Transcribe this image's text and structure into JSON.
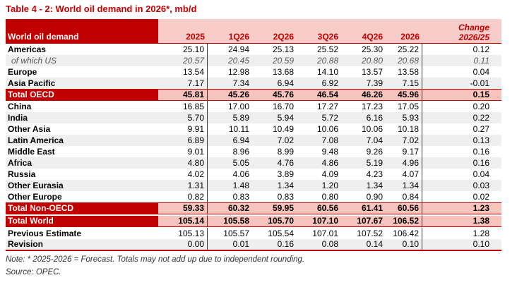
{
  "title": "Table 4 - 2: World oil demand in 2026*, mb/d",
  "colors": {
    "dark_red": "#C00000",
    "pink_header": "#F8CCC8",
    "pink_total": "#F7C4BD",
    "stripe_gray": "#EFEFEF",
    "sub_gray": "#595959",
    "note_gray": "#333333"
  },
  "table": {
    "label_header": "World oil demand",
    "columns": [
      "2025",
      "1Q26",
      "2Q26",
      "3Q26",
      "4Q26",
      "2026"
    ],
    "change_header": {
      "line1": "Change",
      "line2": "2026/25"
    },
    "rows": [
      {
        "label": "Americas",
        "type": "normal",
        "values": [
          "25.10",
          "24.94",
          "25.13",
          "25.52",
          "25.30",
          "25.22",
          "0.12"
        ]
      },
      {
        "label": "of which US",
        "type": "sub",
        "values": [
          "20.57",
          "20.45",
          "20.59",
          "20.88",
          "20.80",
          "20.68",
          "0.11"
        ]
      },
      {
        "label": "Europe",
        "type": "normal",
        "values": [
          "13.54",
          "12.98",
          "13.68",
          "14.10",
          "13.57",
          "13.58",
          "0.04"
        ]
      },
      {
        "label": "Asia Pacific",
        "type": "normal",
        "values": [
          "7.17",
          "7.34",
          "6.94",
          "6.92",
          "7.39",
          "7.15",
          "-0.01"
        ]
      },
      {
        "label": "Total OECD",
        "type": "total",
        "values": [
          "45.81",
          "45.26",
          "45.76",
          "46.54",
          "46.26",
          "45.96",
          "0.15"
        ]
      },
      {
        "label": "China",
        "type": "normal",
        "values": [
          "16.85",
          "17.00",
          "16.70",
          "17.27",
          "17.23",
          "17.05",
          "0.20"
        ]
      },
      {
        "label": "India",
        "type": "normal",
        "values": [
          "5.70",
          "5.89",
          "5.94",
          "5.72",
          "6.16",
          "5.93",
          "0.22"
        ]
      },
      {
        "label": "Other Asia",
        "type": "normal",
        "values": [
          "9.91",
          "10.11",
          "10.49",
          "10.06",
          "10.06",
          "10.18",
          "0.27"
        ]
      },
      {
        "label": "Latin America",
        "type": "normal",
        "values": [
          "6.89",
          "6.94",
          "7.02",
          "7.08",
          "7.04",
          "7.02",
          "0.13"
        ]
      },
      {
        "label": "Middle East",
        "type": "normal",
        "values": [
          "9.01",
          "8.96",
          "8.99",
          "9.48",
          "9.26",
          "9.17",
          "0.16"
        ]
      },
      {
        "label": "Africa",
        "type": "normal",
        "values": [
          "4.80",
          "5.05",
          "4.76",
          "4.86",
          "5.19",
          "4.96",
          "0.16"
        ]
      },
      {
        "label": "Russia",
        "type": "normal",
        "values": [
          "4.02",
          "4.06",
          "3.89",
          "4.09",
          "4.23",
          "4.07",
          "0.04"
        ]
      },
      {
        "label": "Other Eurasia",
        "type": "normal",
        "values": [
          "1.31",
          "1.48",
          "1.34",
          "1.20",
          "1.34",
          "1.34",
          "0.03"
        ]
      },
      {
        "label": "Other Europe",
        "type": "normal",
        "values": [
          "0.82",
          "0.83",
          "0.83",
          "0.80",
          "0.90",
          "0.84",
          "0.02"
        ]
      },
      {
        "label": "Total Non-OECD",
        "type": "total",
        "values": [
          "59.33",
          "60.32",
          "59.95",
          "60.56",
          "61.41",
          "60.56",
          "1.23"
        ]
      },
      {
        "label": "Total World",
        "type": "total",
        "values": [
          "105.14",
          "105.58",
          "105.70",
          "107.10",
          "107.67",
          "106.52",
          "1.38"
        ]
      },
      {
        "label": "Previous Estimate",
        "type": "estimate",
        "values": [
          "105.13",
          "105.57",
          "105.54",
          "107.01",
          "107.52",
          "106.42",
          "1.28"
        ]
      },
      {
        "label": "Revision",
        "type": "estimate",
        "values": [
          "0.00",
          "0.01",
          "0.16",
          "0.08",
          "0.14",
          "0.10",
          "0.10"
        ]
      }
    ]
  },
  "footnotes": {
    "note": "Note: * 2025-2026 = Forecast. Totals may not add up due to independent rounding.",
    "source": "Source: OPEC."
  }
}
